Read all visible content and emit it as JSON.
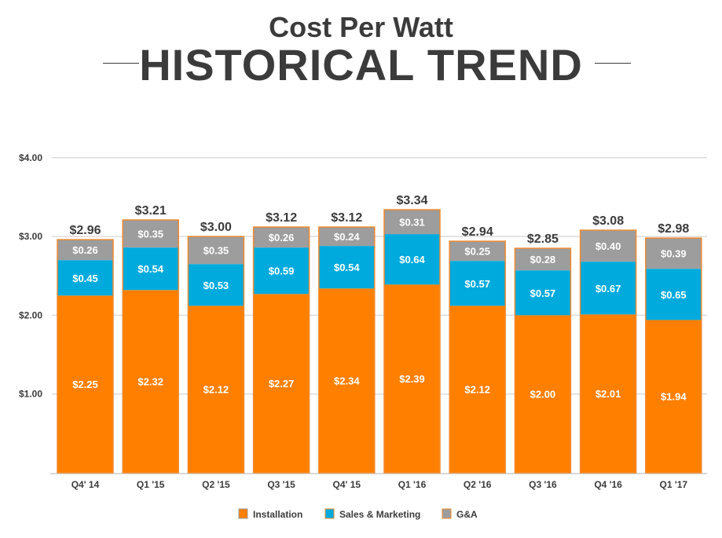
{
  "header": {
    "title": "Cost Per Watt",
    "subtitle": "HISTORICAL TREND"
  },
  "chart_data": {
    "type": "bar",
    "stacked": true,
    "categories": [
      "Q4' 14",
      "Q1 '15",
      "Q2 '15",
      "Q3 '15",
      "Q4' 15",
      "Q1 '16",
      "Q2 '16",
      "Q3 '16",
      "Q4 '16",
      "Q1 '17"
    ],
    "series": [
      {
        "name": "Installation",
        "color": "#FF7F00",
        "values": [
          2.25,
          2.32,
          2.12,
          2.27,
          2.34,
          2.39,
          2.12,
          2.0,
          2.01,
          1.94
        ]
      },
      {
        "name": "Sales & Marketing",
        "color": "#00AADD",
        "values": [
          0.45,
          0.54,
          0.53,
          0.59,
          0.54,
          0.64,
          0.57,
          0.57,
          0.67,
          0.65
        ]
      },
      {
        "name": "G&A",
        "color": "#9D9D9D",
        "values": [
          0.26,
          0.35,
          0.35,
          0.26,
          0.24,
          0.31,
          0.25,
          0.28,
          0.4,
          0.39
        ]
      }
    ],
    "totals": [
      2.96,
      3.21,
      3.0,
      3.12,
      3.12,
      3.34,
      2.94,
      2.85,
      3.08,
      2.98
    ],
    "ylim": [
      0,
      4
    ],
    "yticks": [
      "$1.00",
      "$2.00",
      "$3.00",
      "$4.00"
    ],
    "grid": true,
    "legend": "bottom",
    "outline_color": "#F08A30"
  }
}
